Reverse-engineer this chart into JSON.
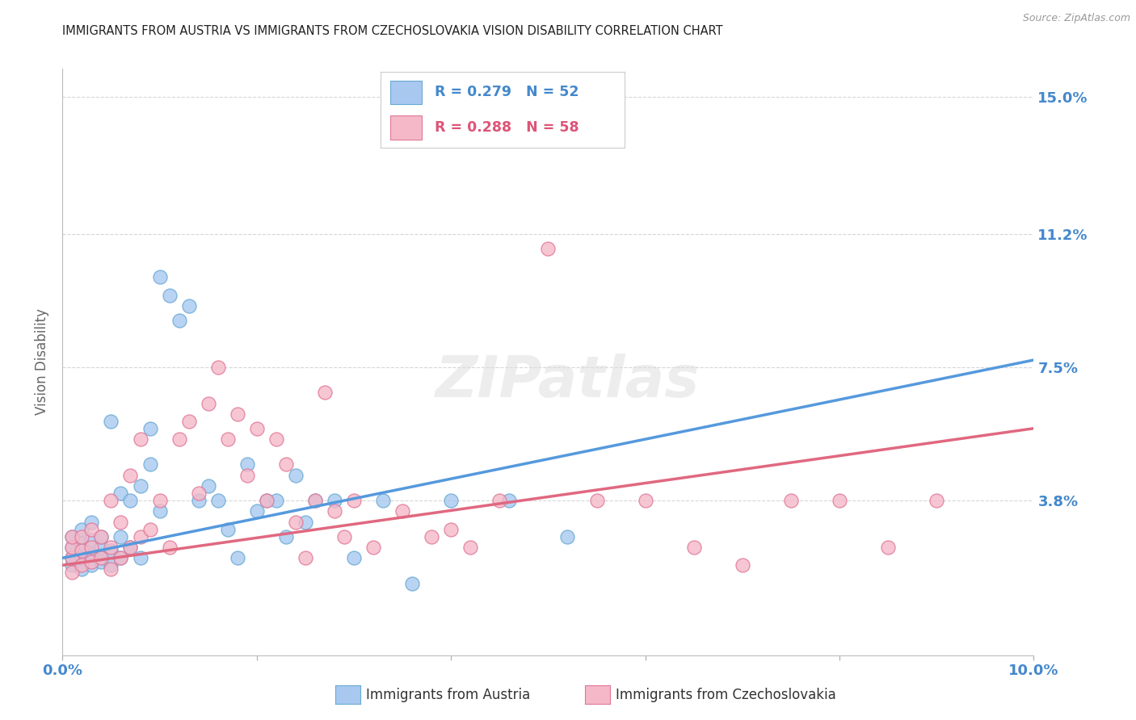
{
  "title": "IMMIGRANTS FROM AUSTRIA VS IMMIGRANTS FROM CZECHOSLOVAKIA VISION DISABILITY CORRELATION CHART",
  "source": "Source: ZipAtlas.com",
  "ylabel": "Vision Disability",
  "xlim": [
    0.0,
    0.1
  ],
  "ylim": [
    -0.005,
    0.158
  ],
  "ytick_vals": [
    0.038,
    0.075,
    0.112,
    0.15
  ],
  "ytick_labels": [
    "3.8%",
    "7.5%",
    "11.2%",
    "15.0%"
  ],
  "xtick_vals": [
    0.0,
    0.02,
    0.04,
    0.06,
    0.08,
    0.1
  ],
  "xtick_labels": [
    "0.0%",
    "",
    "",
    "",
    "",
    "10.0%"
  ],
  "austria_fill": "#a8c8f0",
  "austria_edge": "#6aaad4",
  "czech_fill": "#f5b8c8",
  "czech_edge": "#e07898",
  "line_austria_color": "#5599dd",
  "line_czech_color": "#e06880",
  "R_austria": 0.279,
  "N_austria": 52,
  "R_czech": 0.288,
  "N_czech": 58,
  "background_color": "#ffffff",
  "grid_color": "#cccccc",
  "axis_tick_color": "#4488cc",
  "title_color": "#222222",
  "ylabel_color": "#666666",
  "source_color": "#999999",
  "legend_text_austria_color": "#4488cc",
  "legend_text_czech_color": "#dd5577",
  "line_austria_start_y": 0.022,
  "line_austria_end_y": 0.077,
  "line_czech_start_y": 0.02,
  "line_czech_end_y": 0.058,
  "austria_x": [
    0.001,
    0.001,
    0.001,
    0.001,
    0.002,
    0.002,
    0.002,
    0.002,
    0.003,
    0.003,
    0.003,
    0.003,
    0.004,
    0.004,
    0.004,
    0.005,
    0.005,
    0.005,
    0.006,
    0.006,
    0.006,
    0.007,
    0.007,
    0.008,
    0.008,
    0.009,
    0.009,
    0.01,
    0.01,
    0.011,
    0.012,
    0.013,
    0.014,
    0.015,
    0.016,
    0.017,
    0.018,
    0.019,
    0.02,
    0.021,
    0.022,
    0.023,
    0.024,
    0.025,
    0.026,
    0.028,
    0.03,
    0.033,
    0.036,
    0.04,
    0.046,
    0.052
  ],
  "austria_y": [
    0.02,
    0.022,
    0.025,
    0.028,
    0.019,
    0.022,
    0.026,
    0.03,
    0.02,
    0.023,
    0.027,
    0.032,
    0.021,
    0.025,
    0.028,
    0.02,
    0.024,
    0.06,
    0.022,
    0.028,
    0.04,
    0.025,
    0.038,
    0.022,
    0.042,
    0.058,
    0.048,
    0.035,
    0.1,
    0.095,
    0.088,
    0.092,
    0.038,
    0.042,
    0.038,
    0.03,
    0.022,
    0.048,
    0.035,
    0.038,
    0.038,
    0.028,
    0.045,
    0.032,
    0.038,
    0.038,
    0.022,
    0.038,
    0.015,
    0.038,
    0.038,
    0.028
  ],
  "czech_x": [
    0.001,
    0.001,
    0.001,
    0.001,
    0.002,
    0.002,
    0.002,
    0.003,
    0.003,
    0.003,
    0.004,
    0.004,
    0.005,
    0.005,
    0.005,
    0.006,
    0.006,
    0.007,
    0.007,
    0.008,
    0.008,
    0.009,
    0.01,
    0.011,
    0.012,
    0.013,
    0.014,
    0.015,
    0.016,
    0.017,
    0.018,
    0.019,
    0.02,
    0.021,
    0.022,
    0.023,
    0.024,
    0.025,
    0.026,
    0.027,
    0.028,
    0.029,
    0.03,
    0.032,
    0.035,
    0.038,
    0.04,
    0.042,
    0.045,
    0.05,
    0.055,
    0.06,
    0.065,
    0.07,
    0.075,
    0.08,
    0.085,
    0.09
  ],
  "czech_y": [
    0.018,
    0.022,
    0.025,
    0.028,
    0.02,
    0.024,
    0.028,
    0.021,
    0.025,
    0.03,
    0.022,
    0.028,
    0.019,
    0.025,
    0.038,
    0.022,
    0.032,
    0.025,
    0.045,
    0.028,
    0.055,
    0.03,
    0.038,
    0.025,
    0.055,
    0.06,
    0.04,
    0.065,
    0.075,
    0.055,
    0.062,
    0.045,
    0.058,
    0.038,
    0.055,
    0.048,
    0.032,
    0.022,
    0.038,
    0.068,
    0.035,
    0.028,
    0.038,
    0.025,
    0.035,
    0.028,
    0.03,
    0.025,
    0.038,
    0.108,
    0.038,
    0.038,
    0.025,
    0.02,
    0.038,
    0.038,
    0.025,
    0.038
  ]
}
